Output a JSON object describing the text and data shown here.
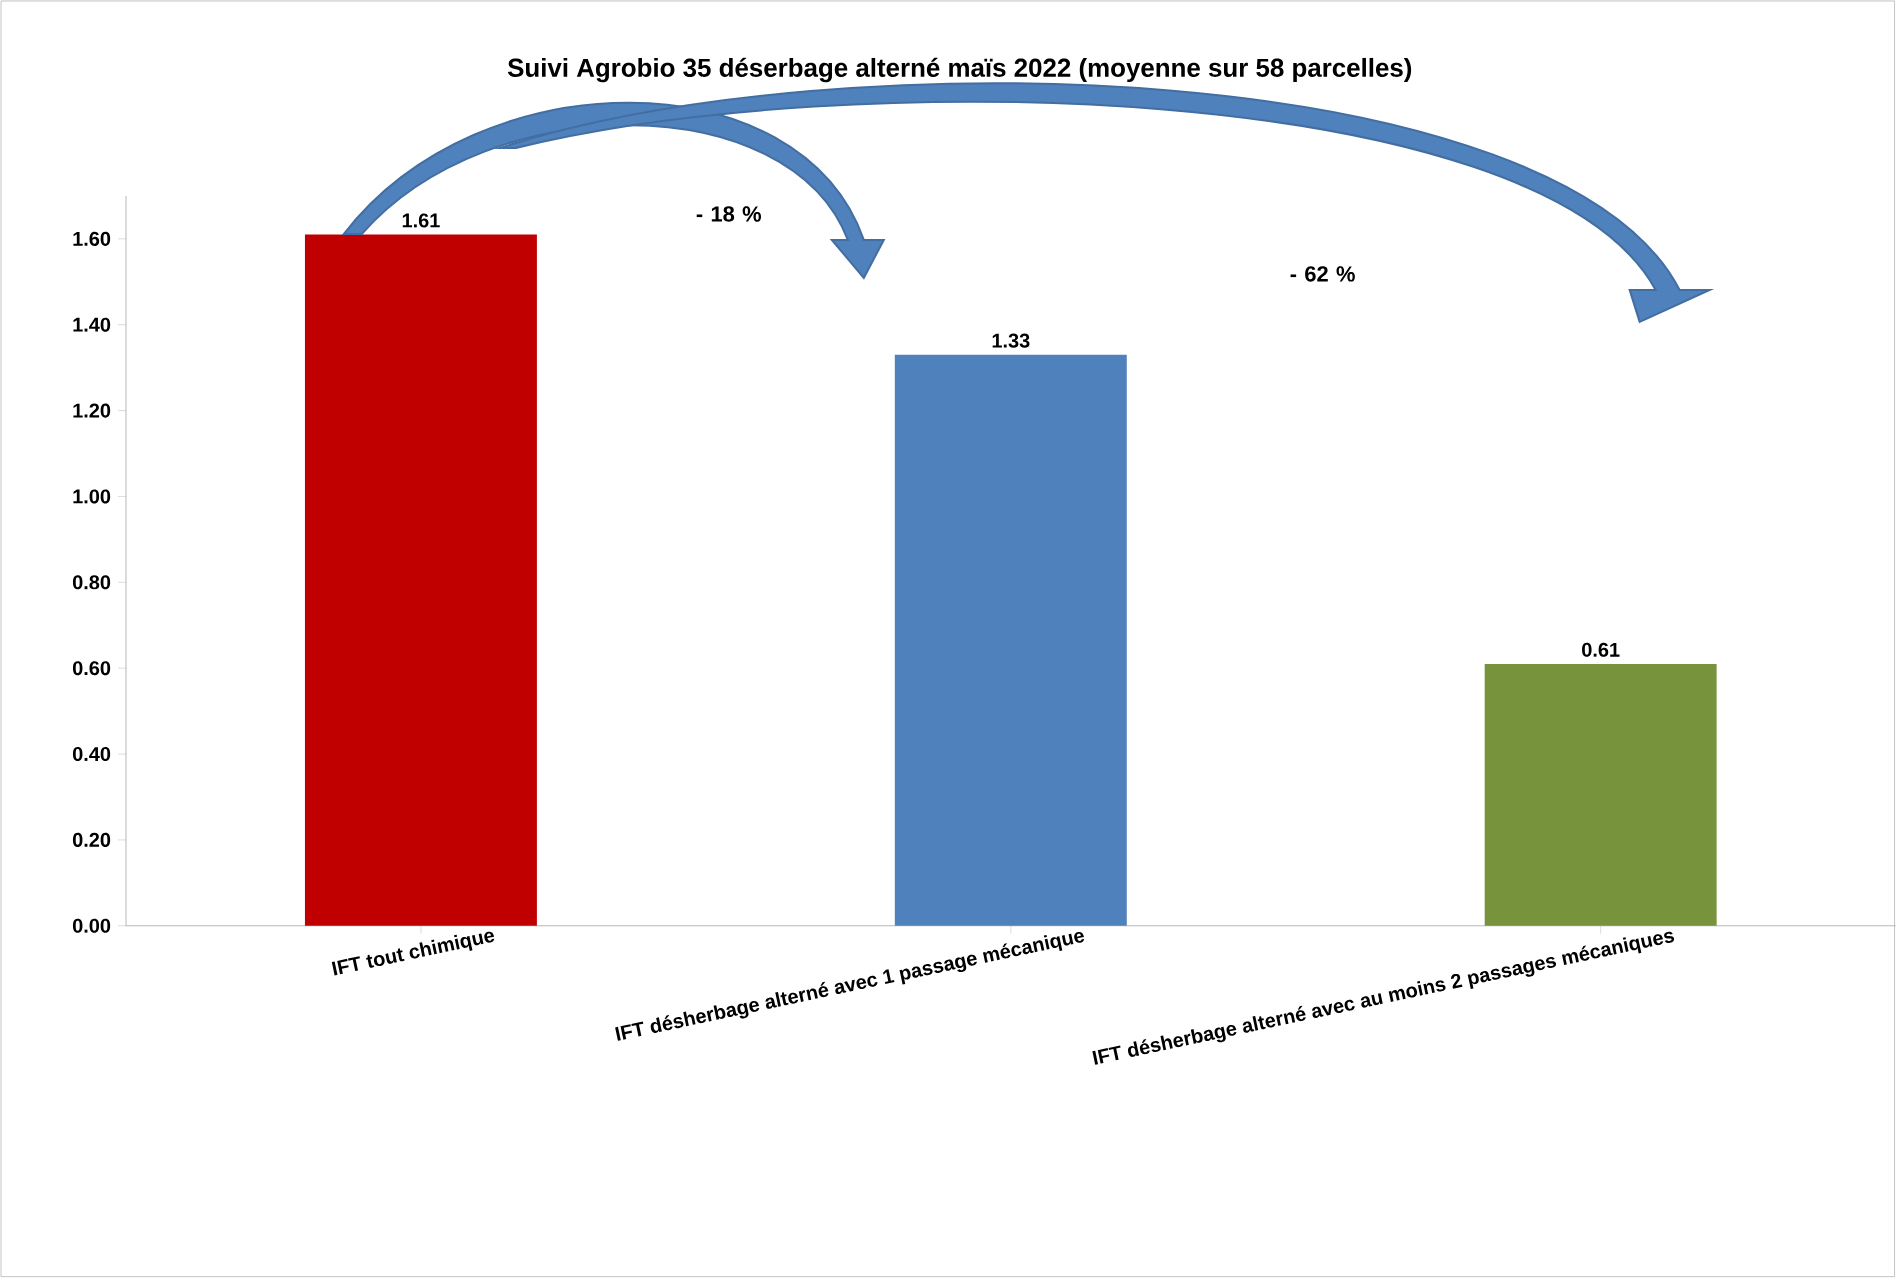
{
  "chart_data": {
    "type": "bar",
    "title": "Suivi Agrobio 35 déserbage alterné maïs 2022  (moyenne sur 58 parcelles)",
    "categories": [
      "IFT tout chimique",
      "IFT désherbage alterné avec 1 passage mécanique",
      "IFT désherbage alterné avec au moins  2 passages mécaniques"
    ],
    "values": [
      1.61,
      1.33,
      0.61
    ],
    "colors": [
      "#c00000",
      "#4f81bd",
      "#77933c"
    ],
    "value_labels": [
      "1.61",
      "1.33",
      "0.61"
    ],
    "ylim": [
      0,
      1.7
    ],
    "yticks": [
      {
        "value": 0,
        "label": "0.00"
      },
      {
        "value": 0.2,
        "label": "0.20"
      },
      {
        "value": 0.4,
        "label": "0.40"
      },
      {
        "value": 0.6,
        "label": "0.60"
      },
      {
        "value": 0.8,
        "label": "0.80"
      },
      {
        "value": 1.0,
        "label": "1.00"
      },
      {
        "value": 1.2,
        "label": "1.20"
      },
      {
        "value": 1.4,
        "label": "1.40"
      },
      {
        "value": 1.6,
        "label": "1.60"
      }
    ],
    "annotations": [
      "- 18 %",
      "- 62 %"
    ]
  }
}
